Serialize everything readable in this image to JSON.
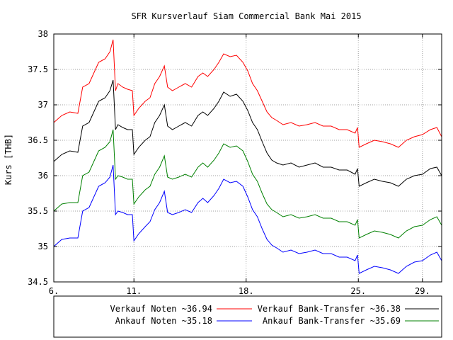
{
  "chart_data": {
    "type": "line",
    "title": "SFR Kursverlauf Siam Commercial Bank Mai 2015",
    "xlabel": "",
    "ylabel": "Kurs [THB]",
    "xlim": [
      6,
      30.2
    ],
    "ylim": [
      34.5,
      38
    ],
    "x_ticks": [
      {
        "value": 6,
        "label": "6."
      },
      {
        "value": 11,
        "label": "11."
      },
      {
        "value": 18,
        "label": "18."
      },
      {
        "value": 25,
        "label": "25."
      },
      {
        "value": 29,
        "label": "29."
      }
    ],
    "y_ticks": [
      {
        "value": 34.5,
        "label": "34.5"
      },
      {
        "value": 35,
        "label": "35"
      },
      {
        "value": 35.5,
        "label": "35.5"
      },
      {
        "value": 36,
        "label": "36"
      },
      {
        "value": 36.5,
        "label": "36.5"
      },
      {
        "value": 37,
        "label": "37"
      },
      {
        "value": 37.5,
        "label": "37.5"
      },
      {
        "value": 38,
        "label": "38"
      }
    ],
    "grid": true,
    "legend_position": "bottom",
    "series": [
      {
        "name": "Verkauf Noten ~36.94",
        "color": "#ff0000",
        "points": [
          [
            6.0,
            36.75
          ],
          [
            6.5,
            36.85
          ],
          [
            7.0,
            36.9
          ],
          [
            7.5,
            36.88
          ],
          [
            7.8,
            37.25
          ],
          [
            8.2,
            37.3
          ],
          [
            8.5,
            37.45
          ],
          [
            8.8,
            37.6
          ],
          [
            9.2,
            37.65
          ],
          [
            9.5,
            37.75
          ],
          [
            9.7,
            37.92
          ],
          [
            9.85,
            37.2
          ],
          [
            10.0,
            37.3
          ],
          [
            10.3,
            37.25
          ],
          [
            10.6,
            37.22
          ],
          [
            10.9,
            37.2
          ],
          [
            11.0,
            36.85
          ],
          [
            11.3,
            36.95
          ],
          [
            11.7,
            37.05
          ],
          [
            12.0,
            37.1
          ],
          [
            12.3,
            37.3
          ],
          [
            12.6,
            37.4
          ],
          [
            12.9,
            37.55
          ],
          [
            13.1,
            37.25
          ],
          [
            13.4,
            37.2
          ],
          [
            13.8,
            37.25
          ],
          [
            14.2,
            37.3
          ],
          [
            14.6,
            37.25
          ],
          [
            15.0,
            37.4
          ],
          [
            15.3,
            37.45
          ],
          [
            15.6,
            37.4
          ],
          [
            16.0,
            37.5
          ],
          [
            16.3,
            37.6
          ],
          [
            16.6,
            37.72
          ],
          [
            17.0,
            37.68
          ],
          [
            17.4,
            37.7
          ],
          [
            17.8,
            37.6
          ],
          [
            18.1,
            37.48
          ],
          [
            18.4,
            37.3
          ],
          [
            18.7,
            37.2
          ],
          [
            19.0,
            37.05
          ],
          [
            19.3,
            36.9
          ],
          [
            19.6,
            36.82
          ],
          [
            19.9,
            36.78
          ],
          [
            20.3,
            36.72
          ],
          [
            20.8,
            36.75
          ],
          [
            21.3,
            36.7
          ],
          [
            21.8,
            36.72
          ],
          [
            22.3,
            36.75
          ],
          [
            22.8,
            36.7
          ],
          [
            23.3,
            36.7
          ],
          [
            23.8,
            36.65
          ],
          [
            24.3,
            36.65
          ],
          [
            24.8,
            36.6
          ],
          [
            24.95,
            36.68
          ],
          [
            25.05,
            36.4
          ],
          [
            25.5,
            36.45
          ],
          [
            26.0,
            36.5
          ],
          [
            26.5,
            36.48
          ],
          [
            27.0,
            36.45
          ],
          [
            27.5,
            36.4
          ],
          [
            28.0,
            36.5
          ],
          [
            28.5,
            36.55
          ],
          [
            29.0,
            36.58
          ],
          [
            29.5,
            36.65
          ],
          [
            29.9,
            36.68
          ],
          [
            30.2,
            36.55
          ]
        ]
      },
      {
        "name": "Ankauf Noten ~35.18",
        "color": "#0000ff",
        "points": [
          [
            6.0,
            35.0
          ],
          [
            6.5,
            35.1
          ],
          [
            7.0,
            35.12
          ],
          [
            7.5,
            35.12
          ],
          [
            7.8,
            35.5
          ],
          [
            8.2,
            35.55
          ],
          [
            8.5,
            35.7
          ],
          [
            8.8,
            35.85
          ],
          [
            9.2,
            35.9
          ],
          [
            9.5,
            35.98
          ],
          [
            9.7,
            36.15
          ],
          [
            9.85,
            35.45
          ],
          [
            10.0,
            35.5
          ],
          [
            10.3,
            35.48
          ],
          [
            10.6,
            35.45
          ],
          [
            10.9,
            35.45
          ],
          [
            11.0,
            35.08
          ],
          [
            11.3,
            35.18
          ],
          [
            11.7,
            35.28
          ],
          [
            12.0,
            35.35
          ],
          [
            12.3,
            35.52
          ],
          [
            12.6,
            35.62
          ],
          [
            12.9,
            35.78
          ],
          [
            13.1,
            35.48
          ],
          [
            13.4,
            35.45
          ],
          [
            13.8,
            35.48
          ],
          [
            14.2,
            35.52
          ],
          [
            14.6,
            35.48
          ],
          [
            15.0,
            35.62
          ],
          [
            15.3,
            35.68
          ],
          [
            15.6,
            35.62
          ],
          [
            16.0,
            35.72
          ],
          [
            16.3,
            35.82
          ],
          [
            16.6,
            35.95
          ],
          [
            17.0,
            35.9
          ],
          [
            17.4,
            35.92
          ],
          [
            17.8,
            35.85
          ],
          [
            18.1,
            35.7
          ],
          [
            18.4,
            35.52
          ],
          [
            18.7,
            35.42
          ],
          [
            19.0,
            35.25
          ],
          [
            19.3,
            35.1
          ],
          [
            19.6,
            35.02
          ],
          [
            19.9,
            34.98
          ],
          [
            20.3,
            34.92
          ],
          [
            20.8,
            34.95
          ],
          [
            21.3,
            34.9
          ],
          [
            21.8,
            34.92
          ],
          [
            22.3,
            34.95
          ],
          [
            22.8,
            34.9
          ],
          [
            23.3,
            34.9
          ],
          [
            23.8,
            34.85
          ],
          [
            24.3,
            34.85
          ],
          [
            24.8,
            34.8
          ],
          [
            24.95,
            34.88
          ],
          [
            25.05,
            34.62
          ],
          [
            25.5,
            34.67
          ],
          [
            26.0,
            34.72
          ],
          [
            26.5,
            34.7
          ],
          [
            27.0,
            34.67
          ],
          [
            27.5,
            34.62
          ],
          [
            28.0,
            34.72
          ],
          [
            28.5,
            34.78
          ],
          [
            29.0,
            34.8
          ],
          [
            29.5,
            34.88
          ],
          [
            29.9,
            34.92
          ],
          [
            30.2,
            34.8
          ]
        ]
      },
      {
        "name": "Verkauf Bank-Transfer ~36.38",
        "color": "#000000",
        "points": [
          [
            6.0,
            36.2
          ],
          [
            6.5,
            36.3
          ],
          [
            7.0,
            36.35
          ],
          [
            7.5,
            36.33
          ],
          [
            7.8,
            36.7
          ],
          [
            8.2,
            36.75
          ],
          [
            8.5,
            36.9
          ],
          [
            8.8,
            37.05
          ],
          [
            9.2,
            37.1
          ],
          [
            9.5,
            37.2
          ],
          [
            9.7,
            37.35
          ],
          [
            9.85,
            36.65
          ],
          [
            10.0,
            36.72
          ],
          [
            10.3,
            36.68
          ],
          [
            10.6,
            36.65
          ],
          [
            10.9,
            36.65
          ],
          [
            11.0,
            36.3
          ],
          [
            11.3,
            36.4
          ],
          [
            11.7,
            36.5
          ],
          [
            12.0,
            36.55
          ],
          [
            12.3,
            36.75
          ],
          [
            12.6,
            36.85
          ],
          [
            12.9,
            37.0
          ],
          [
            13.1,
            36.7
          ],
          [
            13.4,
            36.65
          ],
          [
            13.8,
            36.7
          ],
          [
            14.2,
            36.75
          ],
          [
            14.6,
            36.7
          ],
          [
            15.0,
            36.85
          ],
          [
            15.3,
            36.9
          ],
          [
            15.6,
            36.85
          ],
          [
            16.0,
            36.95
          ],
          [
            16.3,
            37.05
          ],
          [
            16.6,
            37.18
          ],
          [
            17.0,
            37.12
          ],
          [
            17.4,
            37.15
          ],
          [
            17.8,
            37.05
          ],
          [
            18.1,
            36.92
          ],
          [
            18.4,
            36.75
          ],
          [
            18.7,
            36.65
          ],
          [
            19.0,
            36.48
          ],
          [
            19.3,
            36.32
          ],
          [
            19.6,
            36.22
          ],
          [
            19.9,
            36.18
          ],
          [
            20.3,
            36.15
          ],
          [
            20.8,
            36.18
          ],
          [
            21.3,
            36.12
          ],
          [
            21.8,
            36.15
          ],
          [
            22.3,
            36.18
          ],
          [
            22.8,
            36.12
          ],
          [
            23.3,
            36.12
          ],
          [
            23.8,
            36.08
          ],
          [
            24.3,
            36.08
          ],
          [
            24.8,
            36.02
          ],
          [
            24.95,
            36.1
          ],
          [
            25.05,
            35.85
          ],
          [
            25.5,
            35.9
          ],
          [
            26.0,
            35.95
          ],
          [
            26.5,
            35.92
          ],
          [
            27.0,
            35.9
          ],
          [
            27.5,
            35.85
          ],
          [
            28.0,
            35.95
          ],
          [
            28.5,
            36.0
          ],
          [
            29.0,
            36.02
          ],
          [
            29.5,
            36.1
          ],
          [
            29.9,
            36.12
          ],
          [
            30.2,
            36.0
          ]
        ]
      },
      {
        "name": "Ankauf Bank-Transfer ~35.69",
        "color": "#008000",
        "points": [
          [
            6.0,
            35.5
          ],
          [
            6.5,
            35.6
          ],
          [
            7.0,
            35.62
          ],
          [
            7.5,
            35.62
          ],
          [
            7.8,
            36.0
          ],
          [
            8.2,
            36.05
          ],
          [
            8.5,
            36.2
          ],
          [
            8.8,
            36.35
          ],
          [
            9.2,
            36.4
          ],
          [
            9.5,
            36.48
          ],
          [
            9.7,
            36.65
          ],
          [
            9.85,
            35.95
          ],
          [
            10.0,
            36.0
          ],
          [
            10.3,
            35.98
          ],
          [
            10.6,
            35.95
          ],
          [
            10.9,
            35.95
          ],
          [
            11.0,
            35.6
          ],
          [
            11.3,
            35.7
          ],
          [
            11.7,
            35.8
          ],
          [
            12.0,
            35.85
          ],
          [
            12.3,
            36.02
          ],
          [
            12.6,
            36.12
          ],
          [
            12.9,
            36.28
          ],
          [
            13.1,
            35.98
          ],
          [
            13.4,
            35.95
          ],
          [
            13.8,
            35.98
          ],
          [
            14.2,
            36.02
          ],
          [
            14.6,
            35.98
          ],
          [
            15.0,
            36.12
          ],
          [
            15.3,
            36.18
          ],
          [
            15.6,
            36.12
          ],
          [
            16.0,
            36.22
          ],
          [
            16.3,
            36.32
          ],
          [
            16.6,
            36.45
          ],
          [
            17.0,
            36.4
          ],
          [
            17.4,
            36.42
          ],
          [
            17.8,
            36.35
          ],
          [
            18.1,
            36.2
          ],
          [
            18.4,
            36.02
          ],
          [
            18.7,
            35.92
          ],
          [
            19.0,
            35.75
          ],
          [
            19.3,
            35.6
          ],
          [
            19.6,
            35.52
          ],
          [
            19.9,
            35.48
          ],
          [
            20.3,
            35.42
          ],
          [
            20.8,
            35.45
          ],
          [
            21.3,
            35.4
          ],
          [
            21.8,
            35.42
          ],
          [
            22.3,
            35.45
          ],
          [
            22.8,
            35.4
          ],
          [
            23.3,
            35.4
          ],
          [
            23.8,
            35.35
          ],
          [
            24.3,
            35.35
          ],
          [
            24.8,
            35.3
          ],
          [
            24.95,
            35.38
          ],
          [
            25.05,
            35.12
          ],
          [
            25.5,
            35.17
          ],
          [
            26.0,
            35.22
          ],
          [
            26.5,
            35.2
          ],
          [
            27.0,
            35.17
          ],
          [
            27.5,
            35.12
          ],
          [
            28.0,
            35.22
          ],
          [
            28.5,
            35.28
          ],
          [
            29.0,
            35.3
          ],
          [
            29.5,
            35.38
          ],
          [
            29.9,
            35.42
          ],
          [
            30.2,
            35.3
          ]
        ]
      }
    ]
  }
}
